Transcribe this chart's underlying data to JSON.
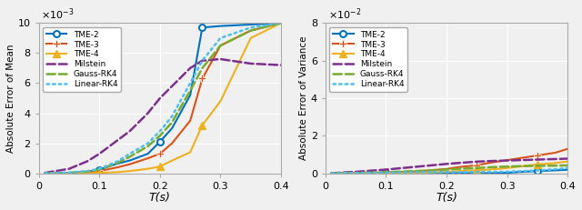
{
  "left_plot": {
    "ylabel": "Absolute Error of Mean",
    "xlabel": "T(s)",
    "xlim": [
      0,
      0.4
    ],
    "ylim": [
      0,
      0.01
    ],
    "scale_exp": -3,
    "yticks": [
      0,
      0.002,
      0.004,
      0.006,
      0.008,
      0.01
    ],
    "ytick_labels": [
      "0",
      "2",
      "4",
      "6",
      "8",
      "10"
    ],
    "xticks": [
      0,
      0.1,
      0.2,
      0.3,
      0.4
    ],
    "series": {
      "TME-2": {
        "x": [
          0.01,
          0.05,
          0.08,
          0.1,
          0.13,
          0.15,
          0.18,
          0.2,
          0.22,
          0.25,
          0.27,
          0.3,
          0.35,
          0.4
        ],
        "y": [
          1e-05,
          3e-05,
          0.0001,
          0.00025,
          0.00065,
          0.00085,
          0.0013,
          0.0021,
          0.003,
          0.0052,
          0.0097,
          0.0098,
          0.0099,
          0.01
        ],
        "color": "#0072bd",
        "linestyle": "-",
        "marker": "o",
        "linewidth": 1.5,
        "markersize": 5,
        "markevery": [
          3,
          7,
          10
        ]
      },
      "TME-3": {
        "x": [
          0.01,
          0.05,
          0.08,
          0.1,
          0.13,
          0.15,
          0.18,
          0.2,
          0.22,
          0.25,
          0.27,
          0.3,
          0.35,
          0.4
        ],
        "y": [
          5e-06,
          1e-05,
          5e-05,
          0.00015,
          0.0004,
          0.0006,
          0.001,
          0.0013,
          0.002,
          0.0035,
          0.0063,
          0.0085,
          0.0095,
          0.01
        ],
        "color": "#d95319",
        "linestyle": "-",
        "marker": "+",
        "linewidth": 1.5,
        "markersize": 6,
        "markevery": [
          3,
          7,
          10
        ]
      },
      "TME-4": {
        "x": [
          0.01,
          0.05,
          0.08,
          0.1,
          0.13,
          0.15,
          0.18,
          0.2,
          0.22,
          0.25,
          0.27,
          0.3,
          0.35,
          0.4
        ],
        "y": [
          2e-06,
          5e-06,
          1e-05,
          3e-05,
          8e-05,
          0.00015,
          0.0003,
          0.00045,
          0.00085,
          0.0014,
          0.0032,
          0.0048,
          0.009,
          0.01
        ],
        "color": "#edb120",
        "linestyle": "-",
        "marker": "^",
        "linewidth": 1.5,
        "markersize": 6,
        "markevery": [
          3,
          7,
          10
        ]
      },
      "Milstein": {
        "x": [
          0.01,
          0.05,
          0.08,
          0.1,
          0.13,
          0.15,
          0.18,
          0.2,
          0.22,
          0.25,
          0.27,
          0.3,
          0.35,
          0.4
        ],
        "y": [
          3e-05,
          0.0003,
          0.0008,
          0.0013,
          0.0022,
          0.0028,
          0.004,
          0.005,
          0.0058,
          0.007,
          0.0075,
          0.0076,
          0.0073,
          0.0072
        ],
        "color": "#7e2f8e",
        "linestyle": "--",
        "marker": null,
        "linewidth": 1.8,
        "markersize": 0,
        "markevery": []
      },
      "Gauss-RK4": {
        "x": [
          0.01,
          0.05,
          0.08,
          0.1,
          0.13,
          0.15,
          0.18,
          0.2,
          0.22,
          0.25,
          0.27,
          0.3,
          0.35,
          0.4
        ],
        "y": [
          5e-06,
          3e-05,
          0.00012,
          0.00025,
          0.0007,
          0.0011,
          0.0018,
          0.0025,
          0.0034,
          0.0055,
          0.007,
          0.0085,
          0.0095,
          0.01
        ],
        "color": "#77ac30",
        "linestyle": "--",
        "marker": null,
        "linewidth": 1.8,
        "markersize": 0,
        "markevery": []
      },
      "Linear-RK4": {
        "x": [
          0.01,
          0.05,
          0.08,
          0.1,
          0.13,
          0.15,
          0.18,
          0.2,
          0.22,
          0.25,
          0.27,
          0.3,
          0.35,
          0.4
        ],
        "y": [
          1e-05,
          5e-05,
          0.00015,
          0.0003,
          0.0008,
          0.0013,
          0.002,
          0.0028,
          0.0038,
          0.006,
          0.0075,
          0.009,
          0.0097,
          0.01
        ],
        "color": "#4dbeee",
        "linestyle": ":",
        "marker": null,
        "linewidth": 1.8,
        "markersize": 0,
        "markevery": []
      }
    }
  },
  "right_plot": {
    "ylabel": "Absolute Error of Variance",
    "xlabel": "T(s)",
    "xlim": [
      0,
      0.4
    ],
    "ylim": [
      0,
      0.08
    ],
    "scale_exp": -2,
    "yticks": [
      0,
      0.02,
      0.04,
      0.06,
      0.08
    ],
    "ytick_labels": [
      "0",
      "2",
      "4",
      "6",
      "8"
    ],
    "xticks": [
      0,
      0.1,
      0.2,
      0.3,
      0.4
    ],
    "series": {
      "TME-2": {
        "x": [
          0.01,
          0.05,
          0.1,
          0.15,
          0.2,
          0.22,
          0.25,
          0.27,
          0.3,
          0.32,
          0.35,
          0.38,
          0.4
        ],
        "y": [
          5e-05,
          0.0001,
          0.00015,
          0.00012,
          0.0001,
          8e-05,
          5e-05,
          2e-05,
          0.0003,
          0.0007,
          0.0012,
          0.0016,
          0.0019
        ],
        "color": "#0072bd",
        "linestyle": "-",
        "marker": "o",
        "linewidth": 1.5,
        "markersize": 5,
        "markevery": [
          2,
          6,
          10
        ]
      },
      "TME-3": {
        "x": [
          0.01,
          0.05,
          0.1,
          0.15,
          0.2,
          0.22,
          0.25,
          0.27,
          0.3,
          0.32,
          0.35,
          0.38,
          0.4
        ],
        "y": [
          5e-05,
          0.00015,
          0.0005,
          0.001,
          0.0023,
          0.0033,
          0.0043,
          0.0055,
          0.007,
          0.008,
          0.0095,
          0.011,
          0.013
        ],
        "color": "#d95319",
        "linestyle": "-",
        "marker": "+",
        "linewidth": 1.5,
        "markersize": 6,
        "markevery": [
          2,
          6,
          10
        ]
      },
      "TME-4": {
        "x": [
          0.01,
          0.05,
          0.1,
          0.15,
          0.2,
          0.22,
          0.25,
          0.27,
          0.3,
          0.32,
          0.35,
          0.38,
          0.4
        ],
        "y": [
          2e-05,
          5e-05,
          0.0001,
          0.00015,
          0.0008,
          0.0012,
          0.0016,
          0.002,
          0.0028,
          0.0036,
          0.0047,
          0.0055,
          0.0063
        ],
        "color": "#edb120",
        "linestyle": "-",
        "marker": "^",
        "linewidth": 1.5,
        "markersize": 6,
        "markevery": [
          2,
          6,
          10
        ]
      },
      "Milstein": {
        "x": [
          0.01,
          0.05,
          0.1,
          0.15,
          0.2,
          0.22,
          0.25,
          0.27,
          0.3,
          0.32,
          0.35,
          0.38,
          0.4
        ],
        "y": [
          0.0001,
          0.0008,
          0.002,
          0.0035,
          0.005,
          0.0055,
          0.0062,
          0.0065,
          0.0068,
          0.007,
          0.0073,
          0.0076,
          0.0078
        ],
        "color": "#7e2f8e",
        "linestyle": "--",
        "marker": null,
        "linewidth": 1.8,
        "markersize": 0,
        "markevery": []
      },
      "Gauss-RK4": {
        "x": [
          0.01,
          0.05,
          0.1,
          0.15,
          0.2,
          0.22,
          0.25,
          0.27,
          0.3,
          0.32,
          0.35,
          0.38,
          0.4
        ],
        "y": [
          3e-05,
          0.0002,
          0.0006,
          0.0012,
          0.002,
          0.0024,
          0.0028,
          0.0032,
          0.0036,
          0.0038,
          0.004,
          0.0041,
          0.0042
        ],
        "color": "#77ac30",
        "linestyle": "--",
        "marker": null,
        "linewidth": 1.8,
        "markersize": 0,
        "markevery": []
      },
      "Linear-RK4": {
        "x": [
          0.01,
          0.05,
          0.1,
          0.15,
          0.2,
          0.22,
          0.25,
          0.27,
          0.3,
          0.32,
          0.35,
          0.38,
          0.4
        ],
        "y": [
          5e-05,
          0.0002,
          0.0004,
          0.00055,
          0.00065,
          0.00065,
          0.0007,
          0.00075,
          0.0009,
          0.0011,
          0.0015,
          0.0022,
          0.0028
        ],
        "color": "#4dbeee",
        "linestyle": ":",
        "marker": null,
        "linewidth": 1.8,
        "markersize": 0,
        "markevery": []
      }
    }
  },
  "legend_order": [
    "TME-2",
    "TME-3",
    "TME-4",
    "Milstein",
    "Gauss-RK4",
    "Linear-RK4"
  ],
  "bg_color": "#f0f0f0",
  "grid_color": "#ffffff",
  "grid_linewidth": 0.8
}
